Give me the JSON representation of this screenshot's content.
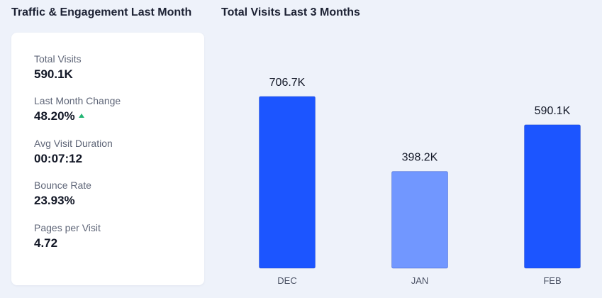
{
  "headings": {
    "left": "Traffic & Engagement Last Month",
    "right": "Total Visits Last 3 Months"
  },
  "stats": [
    {
      "label": "Total Visits",
      "value": "590.1K"
    },
    {
      "label": "Last Month Change",
      "value": "48.20%",
      "trend": "up",
      "trend_color": "#22b573"
    },
    {
      "label": "Avg Visit Duration",
      "value": "00:07:12"
    },
    {
      "label": "Bounce Rate",
      "value": "23.93%"
    },
    {
      "label": "Pages per Visit",
      "value": "4.72"
    }
  ],
  "chart_data": {
    "type": "bar",
    "title": "Total Visits Last 3 Months",
    "categories": [
      "DEC",
      "JAN",
      "FEB"
    ],
    "values": [
      706.7,
      398.2,
      590.1
    ],
    "value_labels": [
      "706.7K",
      "398.2K",
      "590.1K"
    ],
    "bar_colors": [
      "#1c55ff",
      "#7197ff",
      "#1c55ff"
    ],
    "ylim": [
      0,
      706.7
    ],
    "grid": false,
    "legend": "none"
  }
}
